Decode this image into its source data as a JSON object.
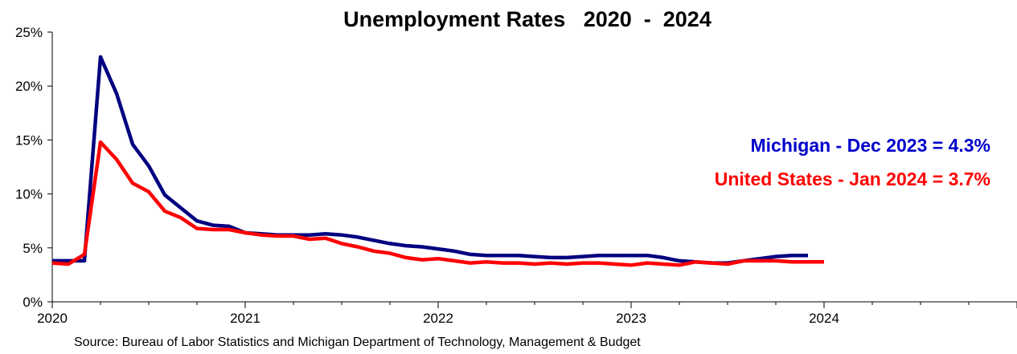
{
  "chart_data": {
    "type": "line",
    "title": "Unemployment Rates   2020  -  2024",
    "xlabel": "",
    "ylabel": "",
    "x_ticks": [
      "2020",
      "2021",
      "2022",
      "2023",
      "2024"
    ],
    "y_ticks": [
      "0%",
      "5%",
      "10%",
      "15%",
      "20%",
      "25%"
    ],
    "ylim": [
      0,
      25
    ],
    "xlim": [
      "2020-01",
      "2025-01"
    ],
    "grid": false,
    "legend": "none",
    "series": [
      {
        "name": "Michigan",
        "color": "#000080",
        "x": [
          "2020-01",
          "2020-02",
          "2020-03",
          "2020-04",
          "2020-05",
          "2020-06",
          "2020-07",
          "2020-08",
          "2020-09",
          "2020-10",
          "2020-11",
          "2020-12",
          "2021-01",
          "2021-02",
          "2021-03",
          "2021-04",
          "2021-05",
          "2021-06",
          "2021-07",
          "2021-08",
          "2021-09",
          "2021-10",
          "2021-11",
          "2021-12",
          "2022-01",
          "2022-02",
          "2022-03",
          "2022-04",
          "2022-05",
          "2022-06",
          "2022-07",
          "2022-08",
          "2022-09",
          "2022-10",
          "2022-11",
          "2022-12",
          "2023-01",
          "2023-02",
          "2023-03",
          "2023-04",
          "2023-05",
          "2023-06",
          "2023-07",
          "2023-08",
          "2023-09",
          "2023-10",
          "2023-11",
          "2023-12"
        ],
        "values": [
          3.8,
          3.8,
          3.8,
          22.7,
          19.3,
          14.6,
          12.6,
          9.9,
          8.7,
          7.5,
          7.1,
          7.0,
          6.4,
          6.3,
          6.2,
          6.2,
          6.2,
          6.3,
          6.2,
          6.0,
          5.7,
          5.4,
          5.2,
          5.1,
          4.9,
          4.7,
          4.4,
          4.3,
          4.3,
          4.3,
          4.2,
          4.1,
          4.1,
          4.2,
          4.3,
          4.3,
          4.3,
          4.3,
          4.1,
          3.8,
          3.7,
          3.6,
          3.6,
          3.8,
          4.0,
          4.2,
          4.3,
          4.3
        ]
      },
      {
        "name": "United States",
        "color": "#ff0000",
        "x": [
          "2020-01",
          "2020-02",
          "2020-03",
          "2020-04",
          "2020-05",
          "2020-06",
          "2020-07",
          "2020-08",
          "2020-09",
          "2020-10",
          "2020-11",
          "2020-12",
          "2021-01",
          "2021-02",
          "2021-03",
          "2021-04",
          "2021-05",
          "2021-06",
          "2021-07",
          "2021-08",
          "2021-09",
          "2021-10",
          "2021-11",
          "2021-12",
          "2022-01",
          "2022-02",
          "2022-03",
          "2022-04",
          "2022-05",
          "2022-06",
          "2022-07",
          "2022-08",
          "2022-09",
          "2022-10",
          "2022-11",
          "2022-12",
          "2023-01",
          "2023-02",
          "2023-03",
          "2023-04",
          "2023-05",
          "2023-06",
          "2023-07",
          "2023-08",
          "2023-09",
          "2023-10",
          "2023-11",
          "2023-12",
          "2024-01"
        ],
        "values": [
          3.6,
          3.5,
          4.4,
          14.8,
          13.2,
          11.0,
          10.2,
          8.4,
          7.8,
          6.8,
          6.7,
          6.7,
          6.4,
          6.2,
          6.1,
          6.1,
          5.8,
          5.9,
          5.4,
          5.1,
          4.7,
          4.5,
          4.1,
          3.9,
          4.0,
          3.8,
          3.6,
          3.7,
          3.6,
          3.6,
          3.5,
          3.6,
          3.5,
          3.6,
          3.6,
          3.5,
          3.4,
          3.6,
          3.5,
          3.4,
          3.7,
          3.6,
          3.5,
          3.8,
          3.8,
          3.8,
          3.7,
          3.7,
          3.7
        ]
      }
    ],
    "annotations": [
      {
        "text": "Michigan - Dec 2023 = 4.3%",
        "color": "#0000cc"
      },
      {
        "text": "United States - Jan 2024 = 3.7%",
        "color": "#ff0000"
      }
    ],
    "source": "Source: Bureau of Labor Statistics and Michigan Department of Technology, Management & Budget"
  }
}
